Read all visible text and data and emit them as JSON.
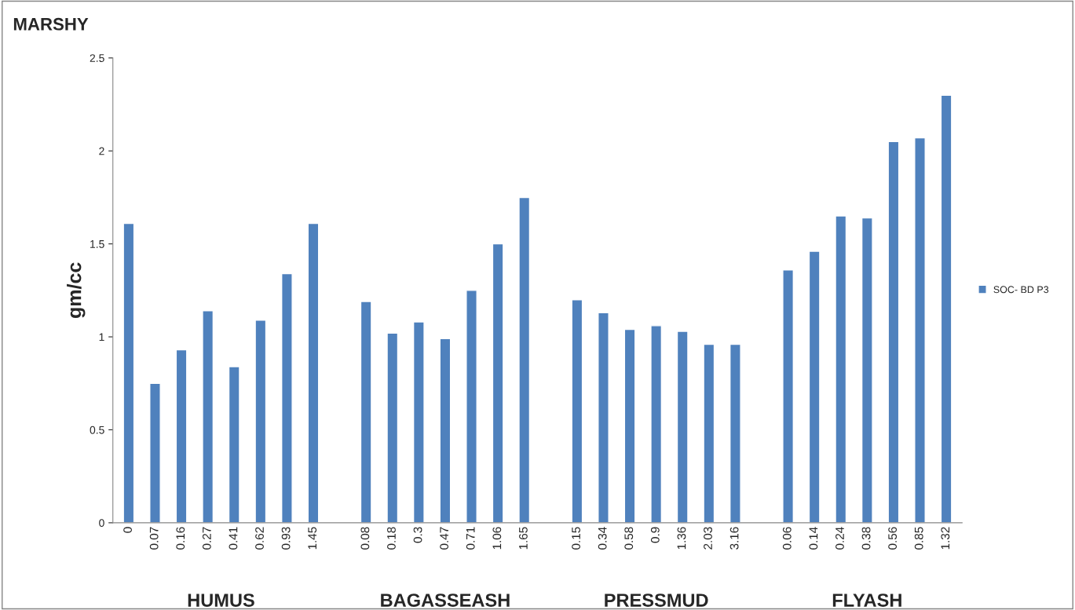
{
  "chart_data": {
    "type": "bar",
    "title": "MARSHY",
    "ylabel": "gm/cc",
    "categories": [
      "0",
      "0.07",
      "0.16",
      "0.27",
      "0.41",
      "0.62",
      "0.93",
      "1.45",
      null,
      "0.08",
      "0.18",
      "0.3",
      "0.47",
      "0.71",
      "1.06",
      "1.65",
      null,
      "0.15",
      "0.34",
      "0.58",
      "0.9",
      "1.36",
      "2.03",
      "3.16",
      null,
      "0.06",
      "0.14",
      "0.24",
      "0.38",
      "0.56",
      "0.85",
      "1.32"
    ],
    "series": [
      {
        "name": "SOC- BD P3",
        "color": "#4f81bd",
        "values": [
          1.61,
          0.75,
          0.93,
          1.14,
          0.84,
          1.09,
          1.34,
          1.61,
          null,
          1.19,
          1.02,
          1.08,
          0.99,
          1.25,
          1.5,
          1.75,
          null,
          1.2,
          1.13,
          1.04,
          1.06,
          1.03,
          0.96,
          0.96,
          null,
          1.36,
          1.46,
          1.65,
          1.64,
          2.05,
          2.07,
          2.3
        ]
      }
    ],
    "annotations": [
      "HUMUS",
      "BAGASSEASH",
      "PRESSMUD",
      "FLYASH"
    ],
    "ylim": [
      0,
      2.5
    ],
    "yticks": [
      0,
      0.5,
      1,
      1.5,
      2,
      2.5
    ],
    "grid": false,
    "legend": "right"
  }
}
